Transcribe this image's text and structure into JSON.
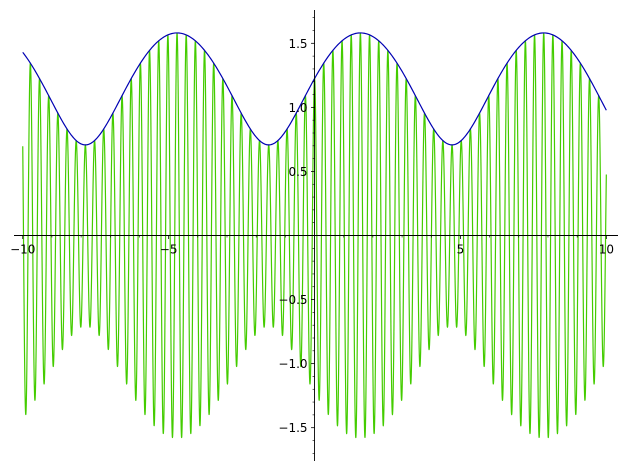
{
  "chart_data": {
    "type": "line",
    "title": "",
    "xlabel": "",
    "ylabel": "",
    "xlim": [
      -10.3,
      10.4
    ],
    "ylim": [
      -1.76,
      1.76
    ],
    "grid": false,
    "axes_style": "centered-spines",
    "x_ticks": [
      {
        "value": -10,
        "label": "−10"
      },
      {
        "value": -5,
        "label": "−5"
      },
      {
        "value": 5,
        "label": "5"
      },
      {
        "value": 10,
        "label": "10"
      }
    ],
    "y_ticks": [
      {
        "value": -1.5,
        "label": "−1.5"
      },
      {
        "value": -1.0,
        "label": "−1.0"
      },
      {
        "value": -0.5,
        "label": "−0.5"
      },
      {
        "value": 0.5,
        "label": "0.5"
      },
      {
        "value": 1.0,
        "label": "1.0"
      },
      {
        "value": 1.5,
        "label": "1.5"
      }
    ],
    "x_minor_step": 1,
    "y_minor_step": 0.1,
    "series": [
      {
        "color": "#0000b3",
        "description": "envelope: sqrt(1.5 + sin(x)) over x in [-10, 10]",
        "x_range": [
          -10,
          10
        ],
        "samples": 400
      },
      {
        "color": "#44cc00",
        "description": "sqrt(1.5 + sin(x)) * cos(20x) over x in [-10, 10]",
        "x_range": [
          -10,
          10
        ],
        "samples": 4000
      }
    ]
  }
}
